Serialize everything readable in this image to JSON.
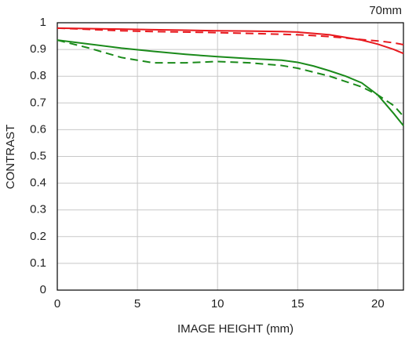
{
  "chart_data": {
    "type": "line",
    "title": "70mm",
    "x_label": "IMAGE HEIGHT (mm)",
    "y_label": "CONTRAST",
    "x": [
      0,
      2,
      4,
      6,
      8,
      10,
      12,
      14,
      15,
      16,
      17,
      18,
      19,
      20,
      21,
      21.6
    ],
    "series": [
      {
        "color": "#e8191e",
        "dash": false,
        "values": [
          0.98,
          0.978,
          0.976,
          0.974,
          0.972,
          0.97,
          0.969,
          0.967,
          0.965,
          0.96,
          0.955,
          0.945,
          0.935,
          0.92,
          0.9,
          0.885
        ]
      },
      {
        "color": "#e8191e",
        "dash": true,
        "values": [
          0.98,
          0.975,
          0.97,
          0.967,
          0.965,
          0.963,
          0.96,
          0.957,
          0.955,
          0.952,
          0.948,
          0.943,
          0.937,
          0.932,
          0.925,
          0.918
        ]
      },
      {
        "color": "#1a8a1a",
        "dash": false,
        "values": [
          0.935,
          0.92,
          0.905,
          0.893,
          0.882,
          0.873,
          0.866,
          0.86,
          0.852,
          0.838,
          0.82,
          0.8,
          0.775,
          0.73,
          0.66,
          0.615
        ]
      },
      {
        "color": "#1a8a1a",
        "dash": true,
        "values": [
          0.935,
          0.905,
          0.87,
          0.85,
          0.85,
          0.855,
          0.85,
          0.84,
          0.83,
          0.815,
          0.8,
          0.78,
          0.76,
          0.73,
          0.69,
          0.65
        ]
      }
    ],
    "xlim": [
      0,
      21.6
    ],
    "xticks": [
      0,
      5,
      10,
      15,
      20
    ],
    "ylim": [
      0,
      1
    ],
    "yticks": [
      0,
      0.1,
      0.2,
      0.3,
      0.4,
      0.5,
      0.6,
      0.7,
      0.8,
      0.9,
      1
    ],
    "grid": true
  }
}
